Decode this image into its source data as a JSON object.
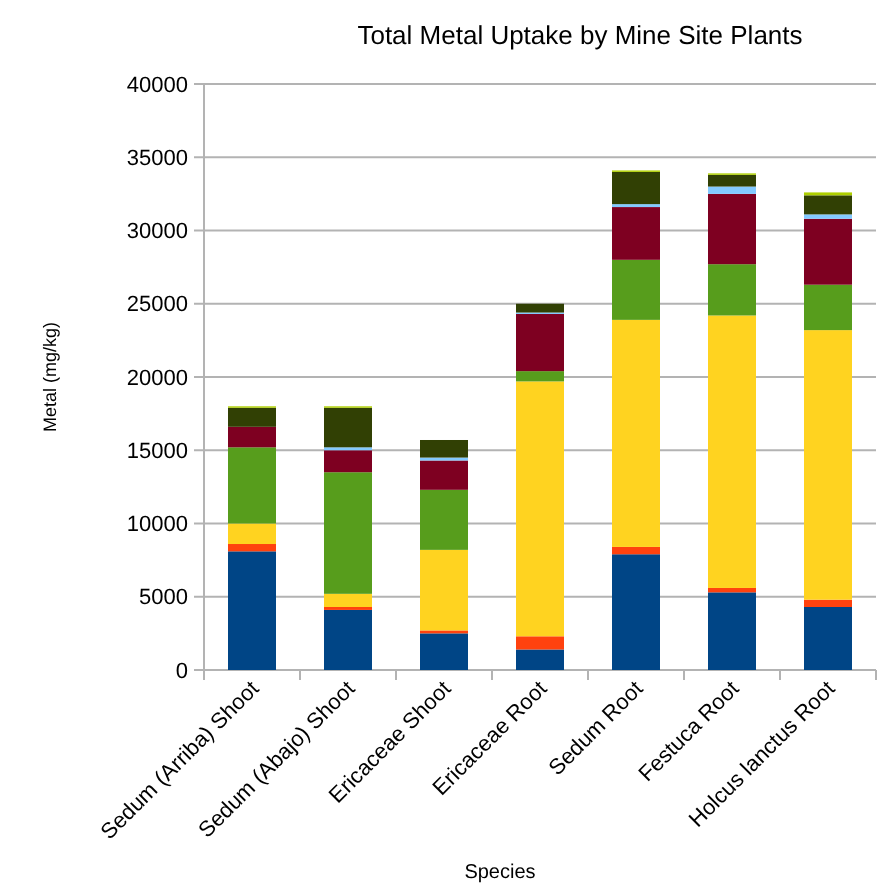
{
  "chart_data": {
    "type": "bar",
    "title": "Total Metal Uptake by Mine Site Plants",
    "xlabel": "Species",
    "ylabel": "Metal (mg/kg)",
    "categories": [
      "Sedum (Arriba) Shoot",
      "Sedum (Abajo) Shoot",
      "Ericaceae Shoot",
      "Ericaceae Root",
      "Sedum Root",
      "Festuca Root",
      "Holcus lanctus Root"
    ],
    "stacked": true,
    "ylim": [
      0,
      40000
    ],
    "yticks": [
      0,
      5000,
      10000,
      15000,
      20000,
      25000,
      30000,
      35000,
      40000
    ],
    "grid": "y",
    "series": [
      {
        "color": "#004586",
        "values": [
          8100,
          4100,
          2500,
          1400,
          7900,
          5300,
          4300
        ]
      },
      {
        "color": "#ff420e",
        "values": [
          500,
          200,
          200,
          900,
          500,
          300,
          500
        ]
      },
      {
        "color": "#ffd320",
        "values": [
          1400,
          900,
          5500,
          17400,
          15500,
          18600,
          18400
        ]
      },
      {
        "color": "#579d1c",
        "values": [
          5200,
          8300,
          4100,
          700,
          4100,
          3500,
          3100
        ]
      },
      {
        "color": "#7e0021",
        "values": [
          1400,
          1500,
          2000,
          3900,
          3600,
          4800,
          4500
        ]
      },
      {
        "color": "#83caff",
        "values": [
          0,
          200,
          200,
          100,
          200,
          500,
          300
        ]
      },
      {
        "color": "#314004",
        "values": [
          1300,
          2700,
          1200,
          600,
          2200,
          800,
          1300
        ]
      },
      {
        "color": "#aecf00",
        "values": [
          100,
          100,
          0,
          0,
          100,
          100,
          200
        ]
      }
    ]
  }
}
